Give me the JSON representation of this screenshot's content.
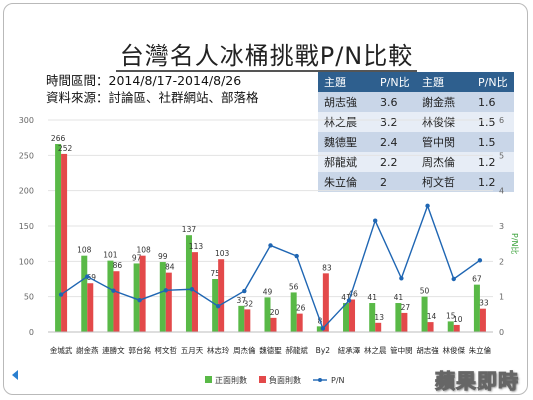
{
  "title": "台灣名人冰桶挑戰P/N比較",
  "meta": {
    "period": "時間區間：2014/8/17-2014/8/26",
    "source": "資料來源：討論區、社群網站、部落格"
  },
  "info_table": {
    "headers": [
      "主題",
      "P/N比",
      "主題",
      "P/N比"
    ],
    "rows": [
      [
        "胡志強",
        "3.6",
        "謝金燕",
        "1.6"
      ],
      [
        "林之晨",
        "3.2",
        "林俊傑",
        "1.5"
      ],
      [
        "魏德聖",
        "2.4",
        "管中閔",
        "1.5"
      ],
      [
        "郝龍斌",
        "2.2",
        "周杰倫",
        "1.2"
      ],
      [
        "朱立倫",
        "2",
        "柯文哲",
        "1.2"
      ]
    ]
  },
  "chart_data": {
    "type": "bar",
    "categories": [
      "金城武",
      "謝金燕",
      "連勝文",
      "郭台銘",
      "柯文哲",
      "五月天",
      "林志玲",
      "周杰倫",
      "魏德聖",
      "郝龍斌",
      "By2",
      "紐承澤",
      "林之晨",
      "管中閔",
      "胡志強",
      "林俊傑",
      "朱立倫"
    ],
    "series": [
      {
        "name": "正面則數",
        "color": "#59b947",
        "values": [
          266,
          108,
          101,
          97,
          99,
          137,
          75,
          37,
          49,
          56,
          8,
          41,
          41,
          41,
          50,
          15,
          67
        ]
      },
      {
        "name": "負面則數",
        "color": "#e3494a",
        "values": [
          252,
          69,
          86,
          108,
          84,
          113,
          103,
          32,
          20,
          26,
          83,
          46,
          13,
          27,
          14,
          10,
          33
        ]
      },
      {
        "name": "P/N",
        "color": "#1f66b3",
        "type": "line",
        "axis": "right",
        "values": [
          1.06,
          1.57,
          1.17,
          0.9,
          1.18,
          1.21,
          0.73,
          1.16,
          2.45,
          2.15,
          0.1,
          0.89,
          3.15,
          1.52,
          3.57,
          1.5,
          2.03
        ]
      }
    ],
    "y_left": {
      "min": 0,
      "max": 300,
      "ticks": [
        0,
        50,
        100,
        150,
        200,
        250,
        300
      ]
    },
    "y_right": {
      "min": 0,
      "max": 6,
      "ticks": [
        0,
        1,
        2,
        3,
        4,
        5,
        6
      ],
      "label": "P/N比"
    },
    "data_labels": {
      "positive": [
        "266",
        "108",
        "101",
        "97",
        "99",
        "137",
        "75",
        "37",
        "49",
        "56",
        "8",
        "41",
        "41",
        "41",
        "50",
        "15",
        "67"
      ],
      "negative": [
        "252",
        "69",
        "86",
        "108",
        "84",
        "113",
        "103",
        "32",
        "20",
        "26",
        "83",
        "46",
        "13",
        "27",
        "14",
        "10",
        "33"
      ]
    },
    "legend": {
      "position": "bottom",
      "items": [
        "正面則數",
        "負面則數",
        "P/N"
      ]
    },
    "grid": true
  },
  "logo_text": "蘋果即時"
}
